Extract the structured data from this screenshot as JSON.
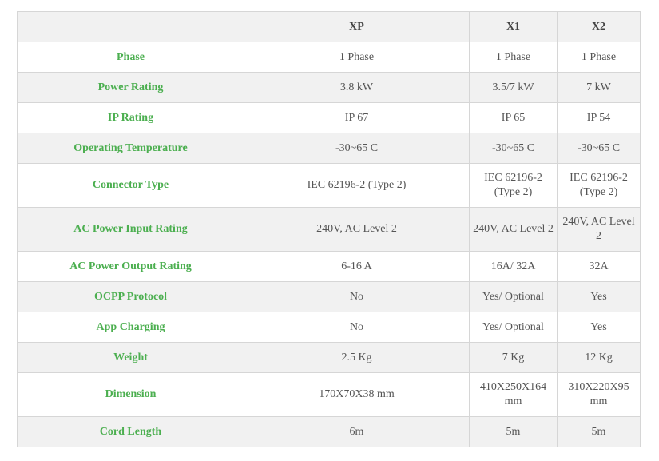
{
  "table": {
    "header": [
      "",
      "XP",
      "X1",
      "X2"
    ],
    "rows": [
      {
        "label": "Phase",
        "xp": "1 Phase",
        "x1": "1 Phase",
        "x2": "1 Phase"
      },
      {
        "label": "Power Rating",
        "xp": "3.8 kW",
        "x1": "3.5/7 kW",
        "x2": "7 kW"
      },
      {
        "label": "IP Rating",
        "xp": "IP 67",
        "x1": "IP 65",
        "x2": "IP 54"
      },
      {
        "label": "Operating Temperature",
        "xp": "-30~65 C",
        "x1": "-30~65 C",
        "x2": "-30~65 C"
      },
      {
        "label": "Connector Type",
        "xp": "IEC 62196-2 (Type 2)",
        "x1": "IEC 62196-2 (Type 2)",
        "x2": "IEC 62196-2 (Type 2)"
      },
      {
        "label": "AC Power Input Rating",
        "xp": "240V, AC Level 2",
        "x1": "240V, AC Level 2",
        "x2": "240V, AC Level 2"
      },
      {
        "label": "AC Power Output Rating",
        "xp": "6-16 A",
        "x1": "16A/ 32A",
        "x2": "32A"
      },
      {
        "label": "OCPP Protocol",
        "xp": "No",
        "x1": "Yes/ Optional",
        "x2": "Yes"
      },
      {
        "label": "App Charging",
        "xp": "No",
        "x1": "Yes/ Optional",
        "x2": "Yes"
      },
      {
        "label": "Weight",
        "xp": "2.5 Kg",
        "x1": "7 Kg",
        "x2": "12 Kg"
      },
      {
        "label": "Dimension",
        "xp": "170X70X38 mm",
        "x1": "410X250X164 mm",
        "x2": "310X220X95 mm"
      },
      {
        "label": "Cord Length",
        "xp": "6m",
        "x1": "5m",
        "x2": "5m"
      }
    ]
  },
  "colors": {
    "label_text": "#4caf50",
    "shaded_row": "#f1f1f1",
    "border": "#d6d6d6",
    "value_text": "#555555"
  }
}
